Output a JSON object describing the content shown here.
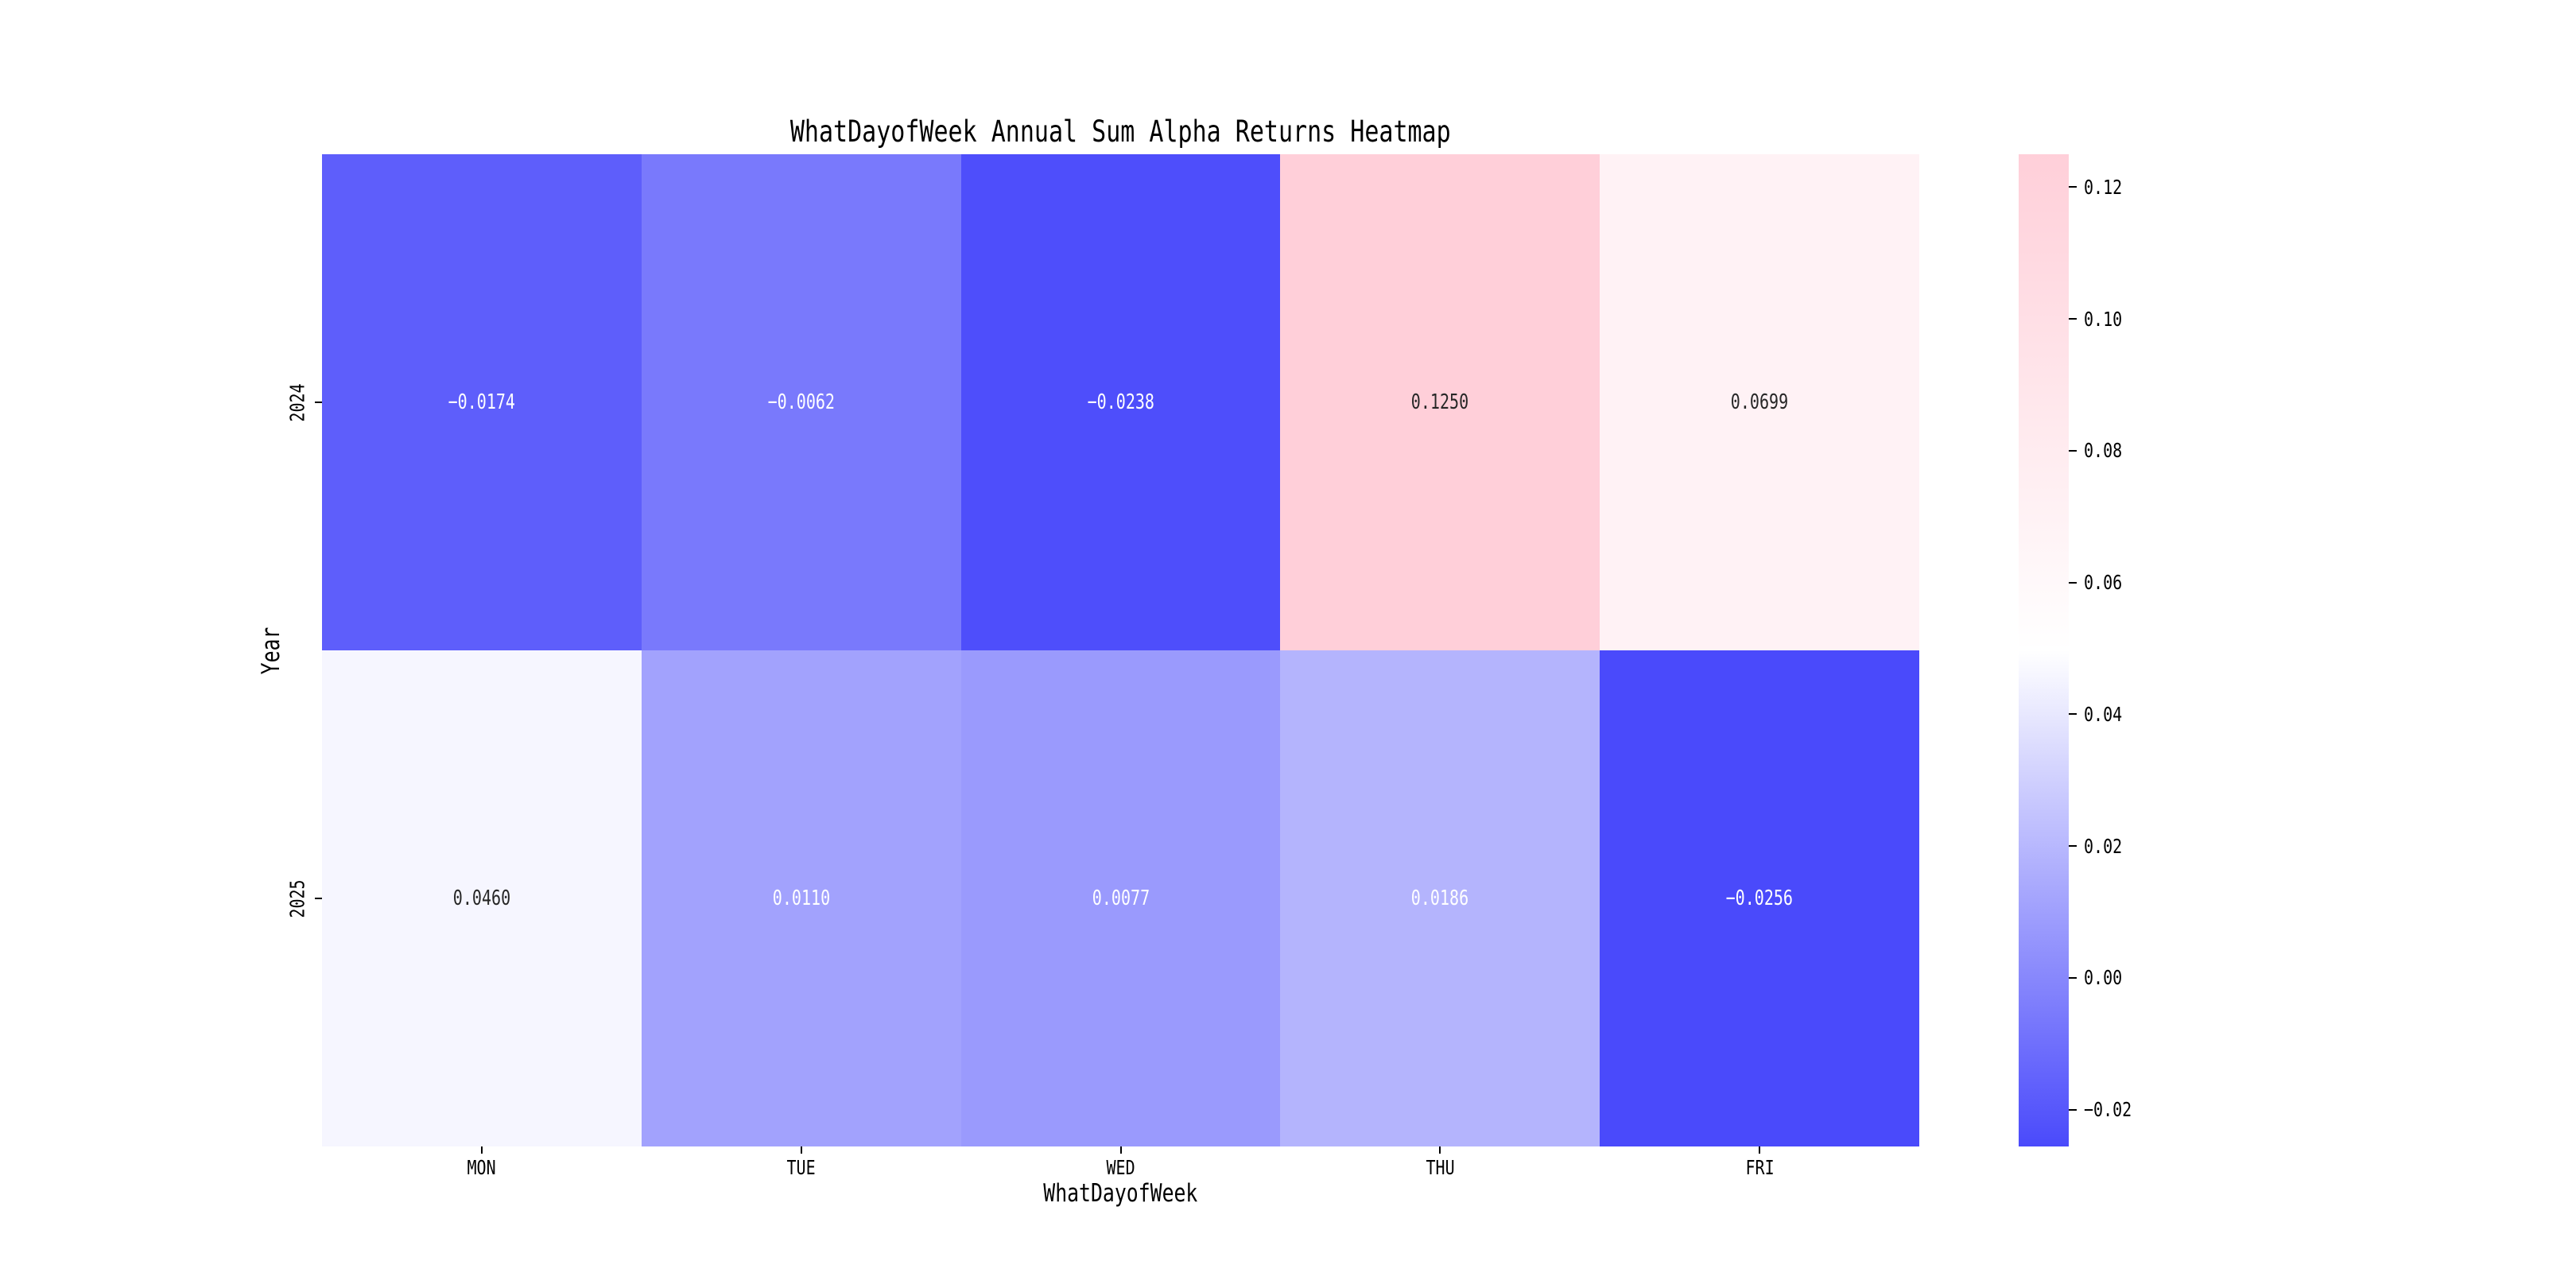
{
  "figure": {
    "background_color": "#ffffff",
    "text_color": "#000000",
    "dark_annotation_color": "#262626",
    "light_annotation_color": "#ffffff"
  },
  "chart_data": {
    "type": "heatmap",
    "title": "WhatDayofWeek Annual Sum Alpha Returns Heatmap",
    "xlabel": "WhatDayofWeek",
    "ylabel": "Year",
    "categories_x": [
      "MON",
      "TUE",
      "WED",
      "THU",
      "FRI"
    ],
    "categories_y": [
      "2024",
      "2025"
    ],
    "values": [
      [
        -0.0174,
        -0.0062,
        -0.0238,
        0.125,
        0.0699
      ],
      [
        0.046,
        0.011,
        0.0077,
        0.0186,
        -0.0256
      ]
    ],
    "cell_labels": [
      [
        "−0.0174",
        "−0.0062",
        "−0.0238",
        "0.1250",
        "0.0699"
      ],
      [
        "0.0460",
        "0.0110",
        "0.0077",
        "0.0186",
        "−0.0256"
      ]
    ],
    "cell_text_colors": [
      [
        "#ffffff",
        "#ffffff",
        "#ffffff",
        "#262626",
        "#262626"
      ],
      [
        "#262626",
        "#ffffff",
        "#ffffff",
        "#ffffff",
        "#ffffff"
      ]
    ],
    "vmin": -0.0256,
    "vmax": 0.125,
    "colormap": {
      "low": "#4A4AFB",
      "mid": "#FFFFFF",
      "high": "#FFCFD9"
    },
    "grid": false,
    "legend": false,
    "colorbar": {
      "side": "right",
      "tick_labels": [
        "0.12",
        "0.10",
        "0.08",
        "0.06",
        "0.04",
        "0.02",
        "0.00",
        "−0.02"
      ],
      "tick_values": [
        0.12,
        0.1,
        0.08,
        0.06,
        0.04,
        0.02,
        0.0,
        -0.02
      ]
    }
  }
}
